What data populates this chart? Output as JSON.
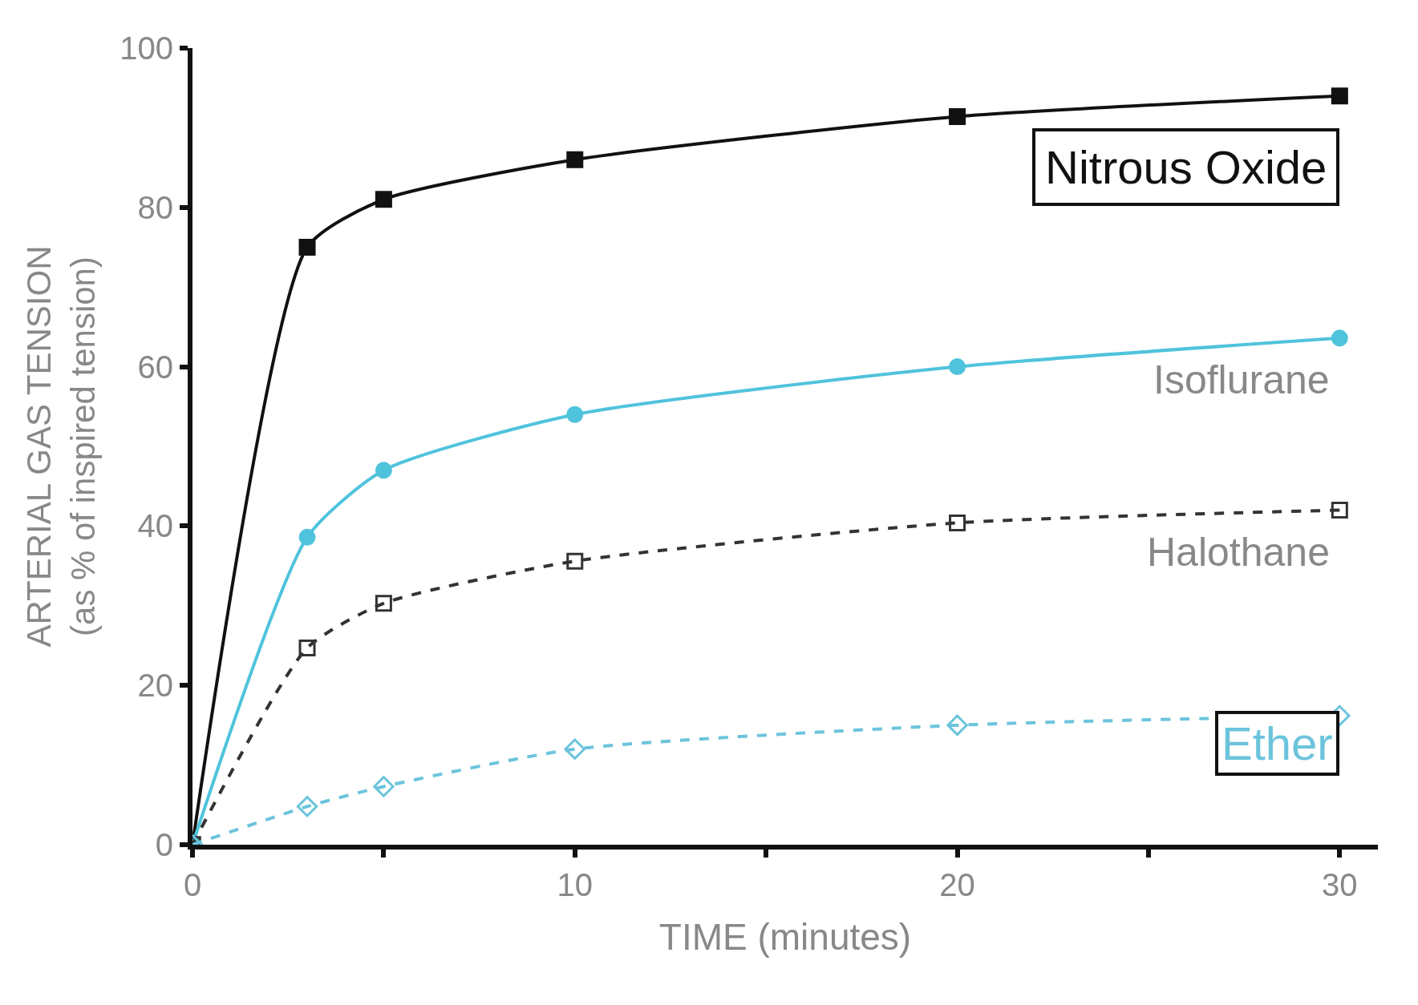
{
  "chart_data": {
    "type": "line",
    "xlabel": "TIME (minutes)",
    "ylabel": "ARTERIAL GAS TENSION\n(as % of inspired tension)",
    "x": [
      0,
      3,
      5,
      10,
      20,
      30
    ],
    "series": [
      {
        "name": "Nitrous Oxide",
        "color": "#111111",
        "marker": "square",
        "line_style": "solid",
        "values": [
          0,
          75,
          81,
          86,
          91.4,
          94
        ]
      },
      {
        "name": "Isoflurane",
        "color": "#4fc3dc",
        "marker": "circle",
        "line_style": "solid",
        "values": [
          0,
          38.6,
          47,
          54,
          60,
          63.6
        ]
      },
      {
        "name": "Halothane",
        "color": "#333333",
        "marker": "square",
        "line_style": "dashed",
        "values": [
          0,
          24.7,
          30.3,
          35.6,
          40.4,
          42
        ]
      },
      {
        "name": "Ether",
        "color": "#6cc4dc",
        "marker": "diamond",
        "line_style": "dashed",
        "values": [
          0,
          4.8,
          7.3,
          12,
          15,
          16.2
        ]
      }
    ],
    "xlim": [
      0,
      31
    ],
    "xticks": [
      0,
      {
        "value": 5,
        "label": null
      },
      10,
      {
        "value": 15,
        "label": null
      },
      20,
      {
        "value": 25,
        "label": null
      },
      30
    ],
    "ylim": [
      0,
      100
    ],
    "yticks": [
      0,
      20,
      40,
      60,
      80,
      100
    ],
    "grid": false,
    "legend": false
  }
}
